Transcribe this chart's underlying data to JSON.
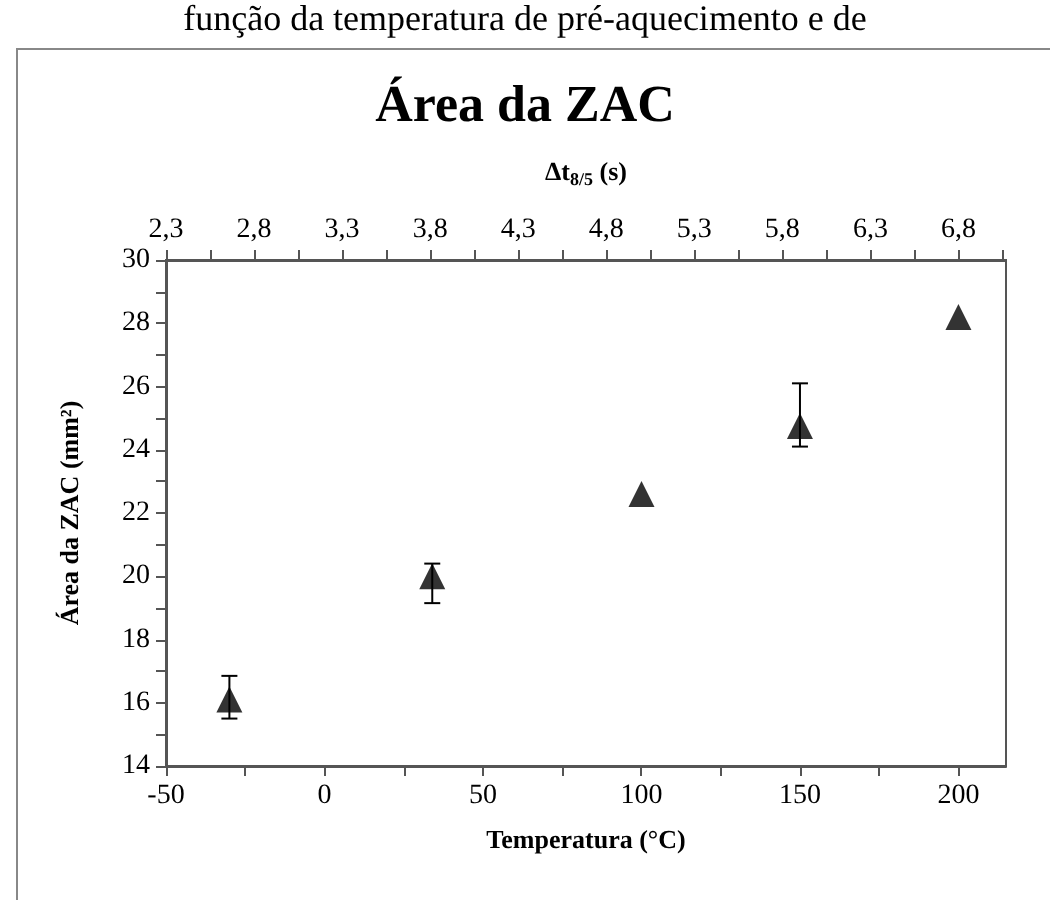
{
  "chart_data": {
    "type": "scatter",
    "title": "Área da ZAC",
    "annotations": [
      "função da temperatura de pré-aquecimento e de"
    ],
    "xlabel": "Temperatura (°C)",
    "ylabel": "Área da ZAC (mm²)",
    "x2label": "Δt$_{8/5}$ (s)",
    "x": [
      -30,
      34,
      100,
      150,
      200
    ],
    "series": [
      {
        "color": "#000000",
        "values": [
          16.1,
          20.0,
          22.6,
          24.75,
          28.2
        ],
        "errors": [
          [
            15.5,
            16.85
          ],
          [
            19.15,
            20.4
          ],
          null,
          [
            24.1,
            26.1
          ],
          null
        ]
      }
    ],
    "marker": "triangle",
    "xlim": [
      -50,
      215
    ],
    "xticks": [
      -50,
      {
        "value": -25,
        "label": null
      },
      0,
      {
        "value": 25,
        "label": null
      },
      50,
      {
        "value": 75,
        "label": null
      },
      100,
      {
        "value": 125,
        "label": null
      },
      150,
      {
        "value": 175,
        "label": null
      },
      200
    ],
    "ylim": [
      14,
      30
    ],
    "yticks": [
      14,
      {
        "value": 15,
        "label": null
      },
      16,
      {
        "value": 17,
        "label": null
      },
      18,
      {
        "value": 19,
        "label": null
      },
      20,
      {
        "value": 21,
        "label": null
      },
      22,
      {
        "value": 23,
        "label": null
      },
      24,
      {
        "value": 25,
        "label": null
      },
      26,
      {
        "value": 27,
        "label": null
      },
      28,
      {
        "value": 29,
        "label": null
      },
      30
    ],
    "x2lim": [
      2.3,
      7.07
    ],
    "x2ticks": [
      {
        "value": 2.3,
        "label": "2,3"
      },
      {
        "value": 2.55,
        "label": null
      },
      {
        "value": 2.8,
        "label": "2,8"
      },
      {
        "value": 3.05,
        "label": null
      },
      {
        "value": 3.3,
        "label": "3,3"
      },
      {
        "value": 3.55,
        "label": null
      },
      {
        "value": 3.8,
        "label": "3,8"
      },
      {
        "value": 4.05,
        "label": null
      },
      {
        "value": 4.3,
        "label": "4,3"
      },
      {
        "value": 4.55,
        "label": null
      },
      {
        "value": 4.8,
        "label": "4,8"
      },
      {
        "value": 5.05,
        "label": null
      },
      {
        "value": 5.3,
        "label": "5,3"
      },
      {
        "value": 5.55,
        "label": null
      },
      {
        "value": 5.8,
        "label": "5,8"
      },
      {
        "value": 6.05,
        "label": null
      },
      {
        "value": 6.3,
        "label": "6,3"
      },
      {
        "value": 6.55,
        "label": null
      },
      {
        "value": 6.8,
        "label": "6,8"
      },
      {
        "value": 7.05,
        "label": null
      }
    ],
    "grid": false
  }
}
